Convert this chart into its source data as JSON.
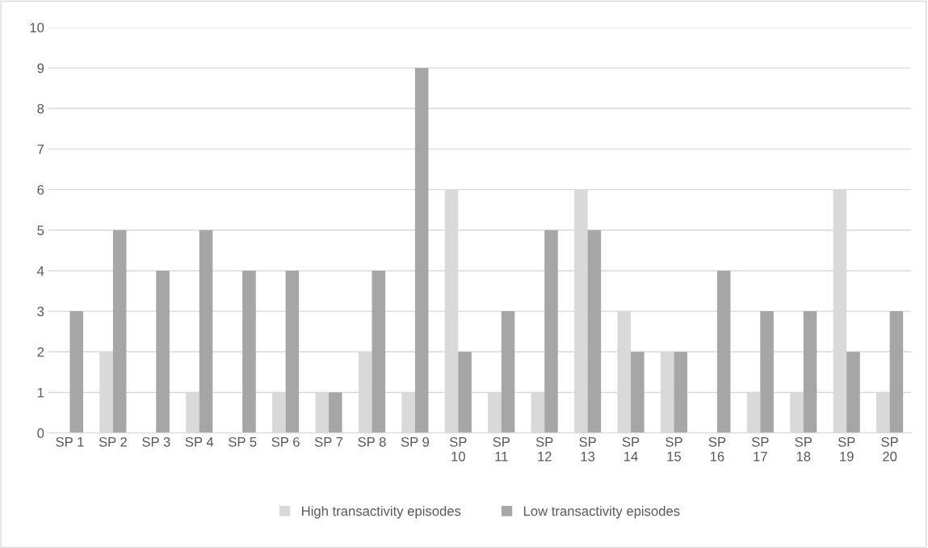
{
  "chart_data": {
    "type": "bar",
    "categories": [
      "SP 1",
      "SP 2",
      "SP 3",
      "SP 4",
      "SP 5",
      "SP 6",
      "SP 7",
      "SP 8",
      "SP 9",
      "SP 10",
      "SP 11",
      "SP 12",
      "SP 13",
      "SP 14",
      "SP 15",
      "SP 16",
      "SP 17",
      "SP 18",
      "SP 19",
      "SP 20"
    ],
    "series": [
      {
        "name": "High transactivity episodes",
        "color": "#d9d9d9",
        "values": [
          0,
          2,
          0,
          1,
          0,
          1,
          1,
          2,
          1,
          6,
          1,
          1,
          6,
          3,
          2,
          0,
          1,
          1,
          6,
          1
        ]
      },
      {
        "name": "Low transactivity episodes",
        "color": "#a6a6a6",
        "values": [
          3,
          5,
          4,
          5,
          4,
          4,
          1,
          4,
          9,
          2,
          3,
          5,
          5,
          2,
          2,
          4,
          3,
          3,
          2,
          3
        ]
      }
    ],
    "ylim": [
      0,
      10
    ],
    "yticks": [
      0,
      1,
      2,
      3,
      4,
      5,
      6,
      7,
      8,
      9,
      10
    ],
    "grid": "y",
    "legend": "bottom"
  }
}
